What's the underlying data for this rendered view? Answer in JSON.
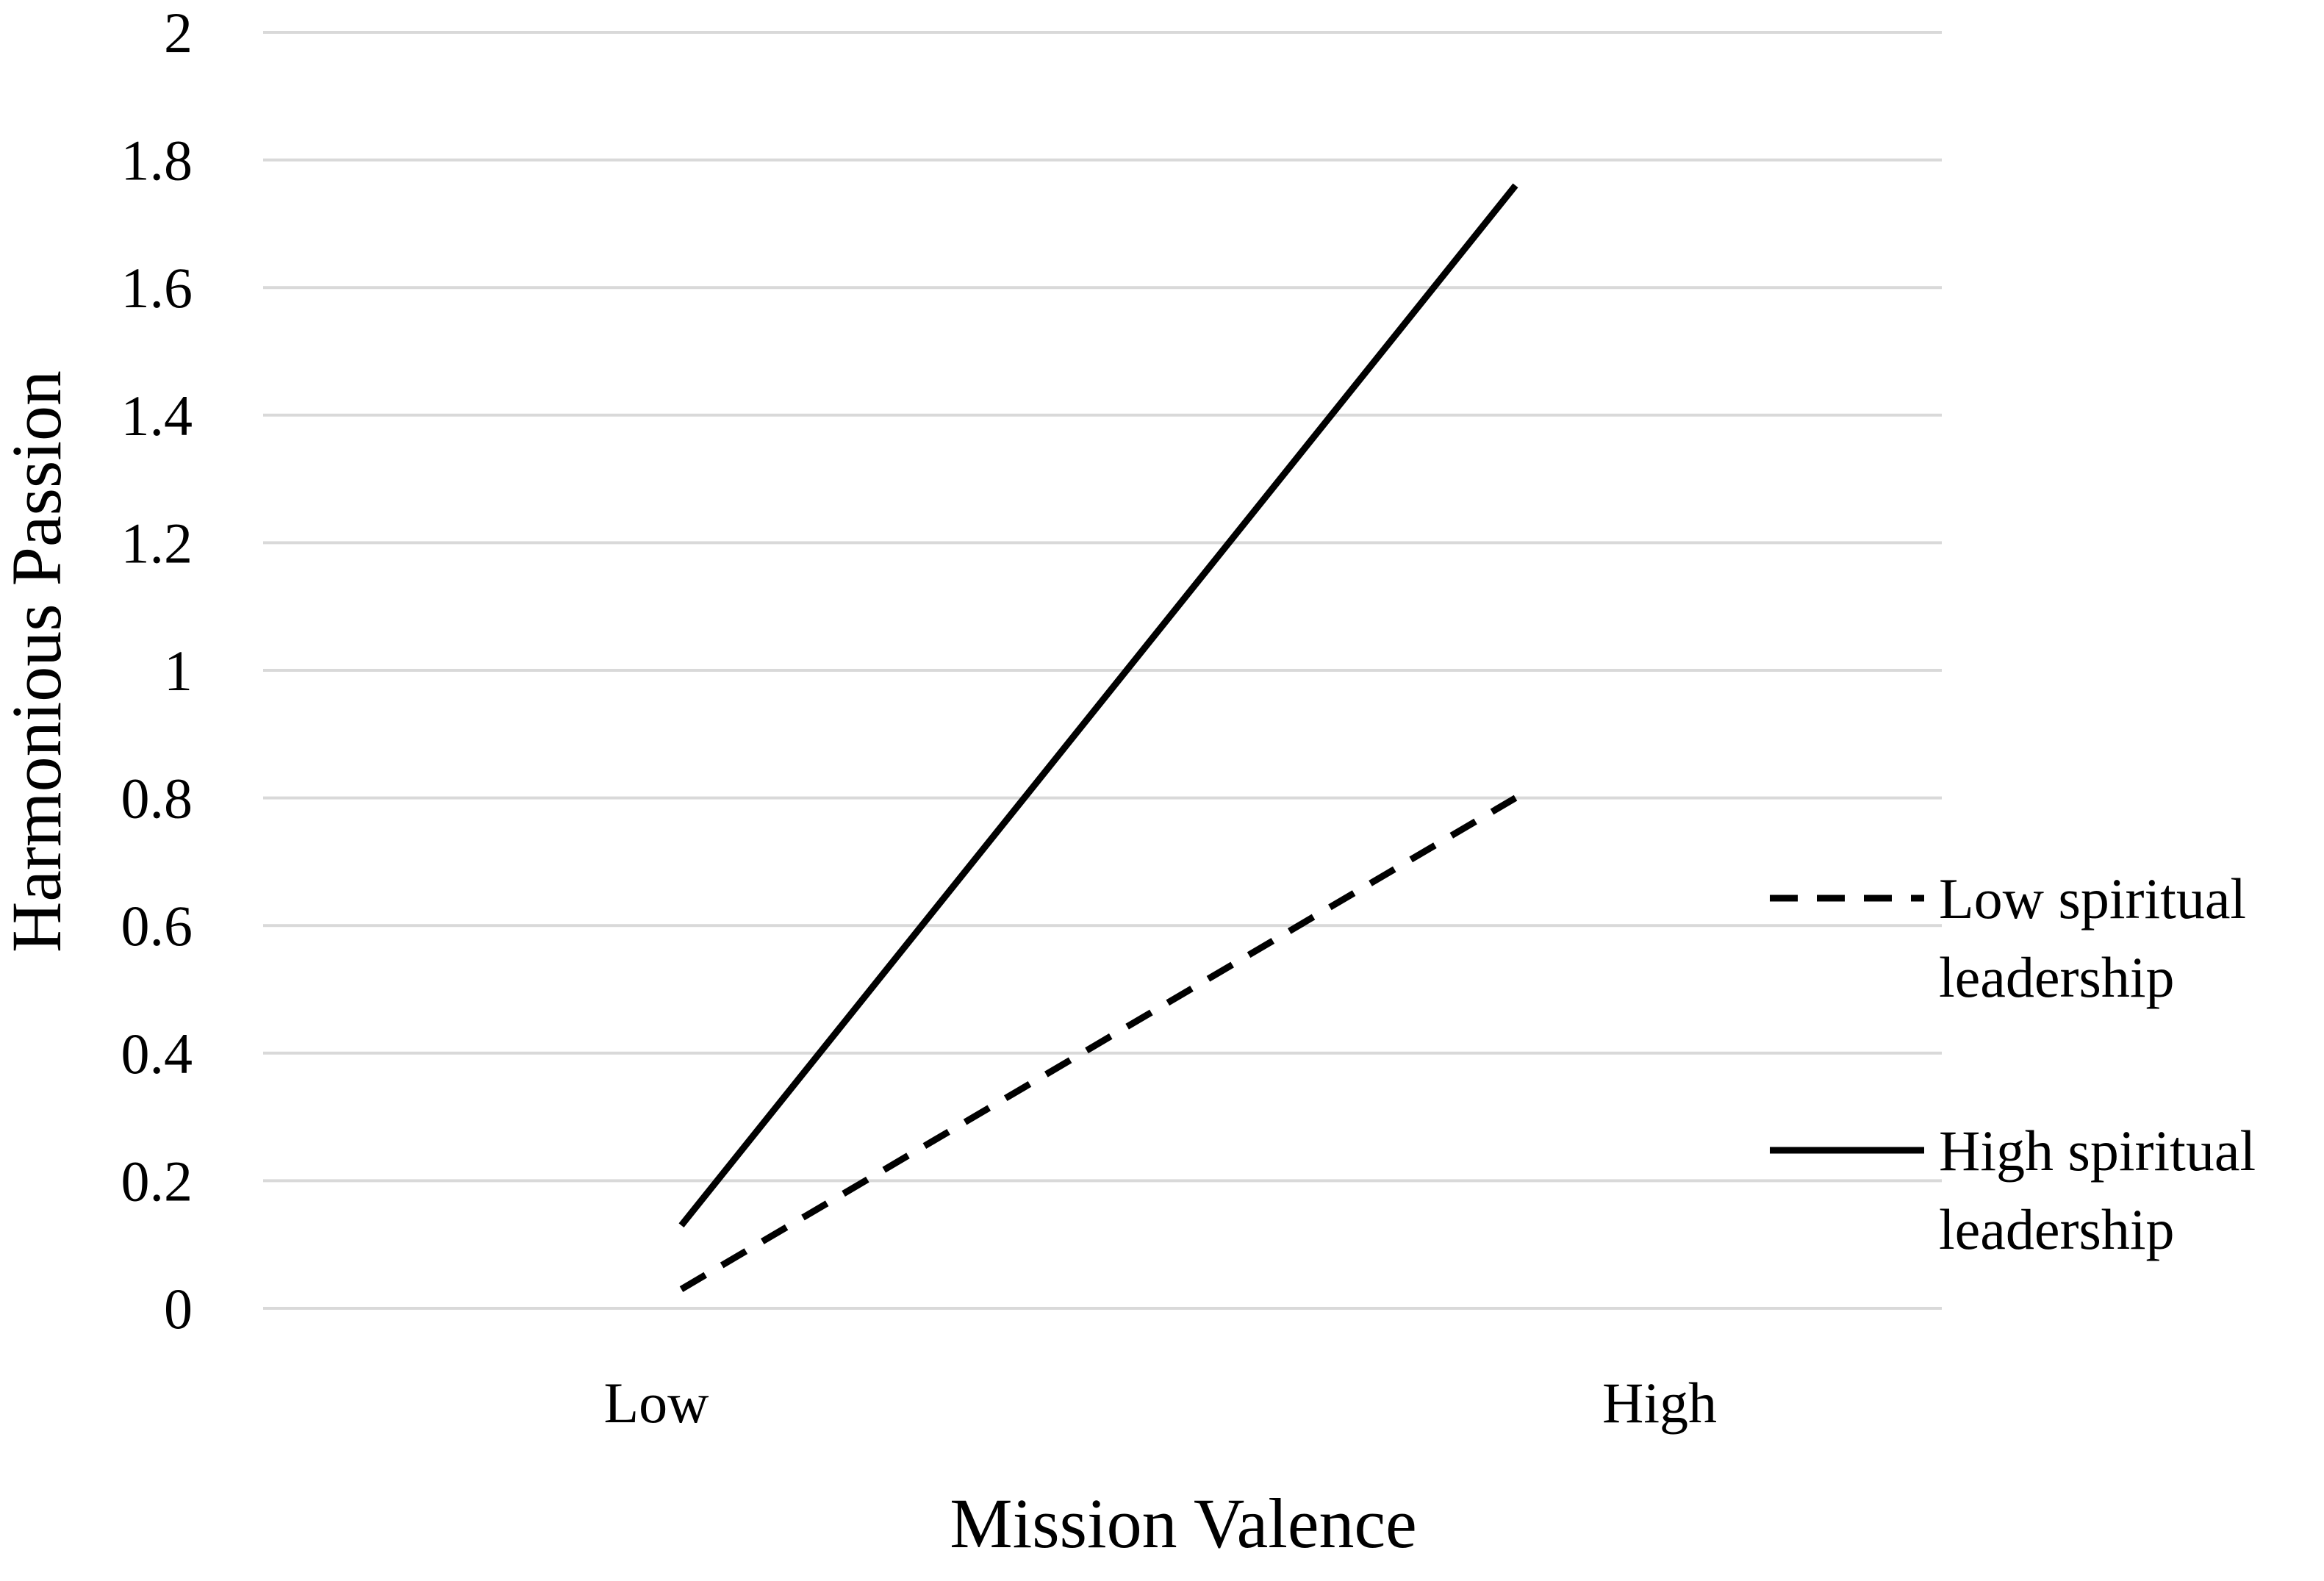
{
  "chart_data": {
    "type": "line",
    "title": "",
    "xlabel": "Mission Valence",
    "ylabel": "Harmonious Passion",
    "categories": [
      "Low",
      "High"
    ],
    "ylim": [
      0,
      2
    ],
    "yticks": [
      "0",
      "0.2",
      "0.4",
      "0.6",
      "0.8",
      "1",
      "1.2",
      "1.4",
      "1.6",
      "1.8",
      "2"
    ],
    "grid": true,
    "legend_position": "right",
    "series": [
      {
        "name": "Low spiritual leadership",
        "legend_lines": [
          "Low spiritual",
          "leadership"
        ],
        "values": [
          0.03,
          0.8
        ],
        "style": "dashed",
        "color": "#000000"
      },
      {
        "name": "High spiritual leadership",
        "legend_lines": [
          "High spiritual",
          "leadership"
        ],
        "values": [
          0.13,
          1.76
        ],
        "style": "solid",
        "color": "#000000"
      }
    ]
  }
}
